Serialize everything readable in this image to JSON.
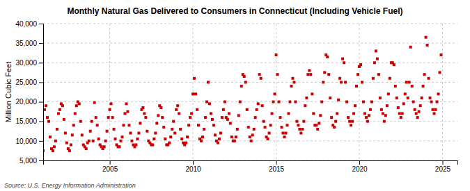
{
  "chart_data": {
    "type": "scatter",
    "title": "Monthly Natural Gas Delivered to Consumers in Connecticut (Including Vehicle Fuel)",
    "ylabel": "Million Cubic Feet",
    "source": "Source: U.S. Energy Information Administration",
    "x": [
      2001.0,
      2001.083,
      2001.167,
      2001.25,
      2001.333,
      2001.417,
      2001.5,
      2001.583,
      2001.667,
      2001.75,
      2001.833,
      2001.917,
      2002.0,
      2002.083,
      2002.167,
      2002.25,
      2002.333,
      2002.417,
      2002.5,
      2002.583,
      2002.667,
      2002.75,
      2002.833,
      2002.917,
      2003.0,
      2003.083,
      2003.167,
      2003.25,
      2003.333,
      2003.417,
      2003.5,
      2003.583,
      2003.667,
      2003.75,
      2003.833,
      2003.917,
      2004.0,
      2004.083,
      2004.167,
      2004.25,
      2004.333,
      2004.417,
      2004.5,
      2004.583,
      2004.667,
      2004.75,
      2004.833,
      2004.917,
      2005.0,
      2005.083,
      2005.167,
      2005.25,
      2005.333,
      2005.417,
      2005.5,
      2005.583,
      2005.667,
      2005.75,
      2005.833,
      2005.917,
      2006.0,
      2006.083,
      2006.167,
      2006.25,
      2006.333,
      2006.417,
      2006.5,
      2006.583,
      2006.667,
      2006.75,
      2006.833,
      2006.917,
      2007.0,
      2007.083,
      2007.167,
      2007.25,
      2007.333,
      2007.417,
      2007.5,
      2007.583,
      2007.667,
      2007.75,
      2007.833,
      2007.917,
      2008.0,
      2008.083,
      2008.167,
      2008.25,
      2008.333,
      2008.417,
      2008.5,
      2008.583,
      2008.667,
      2008.75,
      2008.833,
      2008.917,
      2009.0,
      2009.083,
      2009.167,
      2009.25,
      2009.333,
      2009.417,
      2009.5,
      2009.583,
      2009.667,
      2009.75,
      2009.833,
      2009.917,
      2010.0,
      2010.083,
      2010.167,
      2010.25,
      2010.333,
      2010.417,
      2010.5,
      2010.583,
      2010.667,
      2010.75,
      2010.833,
      2010.917,
      2011.0,
      2011.083,
      2011.167,
      2011.25,
      2011.333,
      2011.417,
      2011.5,
      2011.583,
      2011.667,
      2011.75,
      2011.833,
      2011.917,
      2012.0,
      2012.083,
      2012.167,
      2012.25,
      2012.333,
      2012.417,
      2012.5,
      2012.583,
      2012.667,
      2012.75,
      2012.833,
      2012.917,
      2013.0,
      2013.083,
      2013.167,
      2013.25,
      2013.333,
      2013.417,
      2013.5,
      2013.583,
      2013.667,
      2013.75,
      2013.833,
      2013.917,
      2014.0,
      2014.083,
      2014.167,
      2014.25,
      2014.333,
      2014.417,
      2014.5,
      2014.583,
      2014.667,
      2014.75,
      2014.833,
      2014.917,
      2015.0,
      2015.083,
      2015.167,
      2015.25,
      2015.333,
      2015.417,
      2015.5,
      2015.583,
      2015.667,
      2015.75,
      2015.833,
      2015.917,
      2016.0,
      2016.083,
      2016.167,
      2016.25,
      2016.333,
      2016.417,
      2016.5,
      2016.583,
      2016.667,
      2016.75,
      2016.833,
      2016.917,
      2017.0,
      2017.083,
      2017.167,
      2017.25,
      2017.333,
      2017.417,
      2017.5,
      2017.583,
      2017.667,
      2017.75,
      2017.833,
      2017.917,
      2018.0,
      2018.083,
      2018.167,
      2018.25,
      2018.333,
      2018.417,
      2018.5,
      2018.583,
      2018.667,
      2018.75,
      2018.833,
      2018.917,
      2019.0,
      2019.083,
      2019.167,
      2019.25,
      2019.333,
      2019.417,
      2019.5,
      2019.583,
      2019.667,
      2019.75,
      2019.833,
      2019.917,
      2020.0,
      2020.083,
      2020.167,
      2020.25,
      2020.333,
      2020.417,
      2020.5,
      2020.583,
      2020.667,
      2020.75,
      2020.833,
      2020.917,
      2021.0,
      2021.083,
      2021.167,
      2021.25,
      2021.333,
      2021.417,
      2021.5,
      2021.583,
      2021.667,
      2021.75,
      2021.833,
      2021.917,
      2022.0,
      2022.083,
      2022.167,
      2022.25,
      2022.333,
      2022.417,
      2022.5,
      2022.583,
      2022.667,
      2022.75,
      2022.833,
      2022.917,
      2023.0,
      2023.083,
      2023.167,
      2023.25,
      2023.333,
      2023.417,
      2023.5,
      2023.583,
      2023.667,
      2023.75,
      2023.833,
      2023.917,
      2024.0,
      2024.083,
      2024.167,
      2024.25,
      2024.333,
      2024.417,
      2024.5,
      2024.583,
      2024.667,
      2024.75,
      2024.833,
      2024.917
    ],
    "values": [
      7500,
      18000,
      19000,
      16000,
      15000,
      11000,
      8000,
      7500,
      8500,
      10000,
      13000,
      17000,
      18000,
      19500,
      19000,
      15500,
      12000,
      9500,
      8000,
      7500,
      9000,
      11500,
      14000,
      17000,
      19000,
      20000,
      19500,
      15000,
      11500,
      9000,
      8500,
      8000,
      9500,
      10000,
      12500,
      15000,
      10000,
      19800,
      16000,
      14000,
      10500,
      9000,
      8500,
      8000,
      8500,
      10000,
      12500,
      16000,
      18000,
      19500,
      16000,
      13000,
      10500,
      9000,
      8500,
      8500,
      10000,
      11000,
      14000,
      17000,
      19500,
      17500,
      14000,
      12000,
      10000,
      9000,
      8500,
      9000,
      10500,
      12000,
      14500,
      18000,
      18500,
      17000,
      16000,
      12500,
      10000,
      9500,
      9000,
      9000,
      10500,
      12000,
      14500,
      16500,
      19000,
      18500,
      16000,
      13500,
      10500,
      9000,
      9000,
      9500,
      11000,
      13000,
      15000,
      12000,
      18000,
      19000,
      17000,
      13000,
      10500,
      9500,
      9000,
      9500,
      11000,
      14000,
      16000,
      17000,
      22000,
      26000,
      22000,
      18000,
      14000,
      10500,
      10000,
      11000,
      13000,
      16000,
      20000,
      25000,
      19500,
      17000,
      15500,
      14000,
      11500,
      10000,
      9500,
      10500,
      12000,
      16000,
      18000,
      20000,
      16000,
      15500,
      17000,
      14500,
      11000,
      10000,
      10000,
      11000,
      13000,
      16500,
      20000,
      24000,
      27000,
      26500,
      25000,
      18000,
      13500,
      11000,
      10000,
      11500,
      13000,
      16000,
      18000,
      19500,
      27000,
      26000,
      19000,
      15000,
      13500,
      11000,
      10500,
      12000,
      14000,
      17000,
      20000,
      22000,
      32000,
      27000,
      20000,
      16000,
      13500,
      12000,
      11000,
      12000,
      14000,
      17000,
      20000,
      24000,
      26000,
      25000,
      20000,
      15000,
      14000,
      13000,
      12000,
      13000,
      15000,
      19000,
      21000,
      27000,
      28000,
      27000,
      22000,
      17000,
      14000,
      14000,
      13000,
      14500,
      16500,
      20000,
      25000,
      27500,
      32000,
      31500,
      27000,
      21000,
      16000,
      14000,
      13500,
      15000,
      17000,
      20500,
      26000,
      25000,
      31000,
      30000,
      25000,
      20000,
      16000,
      15000,
      14000,
      15000,
      17000,
      19000,
      24000,
      27000,
      29000,
      29500,
      25000,
      20000,
      17000,
      16000,
      15000,
      16500,
      18000,
      20000,
      26000,
      30000,
      33000,
      31000,
      27000,
      21000,
      18000,
      17000,
      15000,
      16500,
      19000,
      22000,
      26000,
      30000,
      30000,
      29500,
      24000,
      21000,
      18500,
      17000,
      16000,
      17000,
      19500,
      22000,
      25000,
      21000,
      25000,
      34000,
      24000,
      20000,
      18000,
      17000,
      16000,
      17500,
      19000,
      21000,
      24000,
      27000,
      36500,
      34500,
      26000,
      21000,
      20000,
      18000,
      17000,
      18000,
      20000,
      22000,
      27500,
      32000
    ],
    "color": "#cc0000",
    "marker": "square",
    "xlim": [
      2001.0,
      2025.9
    ],
    "ylim": [
      5000,
      40000
    ],
    "xticks": [
      2005,
      2010,
      2015,
      2020,
      2025
    ],
    "yticks": [
      {
        "value": 5000,
        "label": "5,000"
      },
      {
        "value": 10000,
        "label": "10,000"
      },
      {
        "value": 15000,
        "label": "15,000"
      },
      {
        "value": 20000,
        "label": "20,000"
      },
      {
        "value": 25000,
        "label": "25,000"
      },
      {
        "value": 30000,
        "label": "30,000"
      },
      {
        "value": 35000,
        "label": "35,000"
      },
      {
        "value": 40000,
        "label": "40,000"
      }
    ],
    "grid": true
  }
}
